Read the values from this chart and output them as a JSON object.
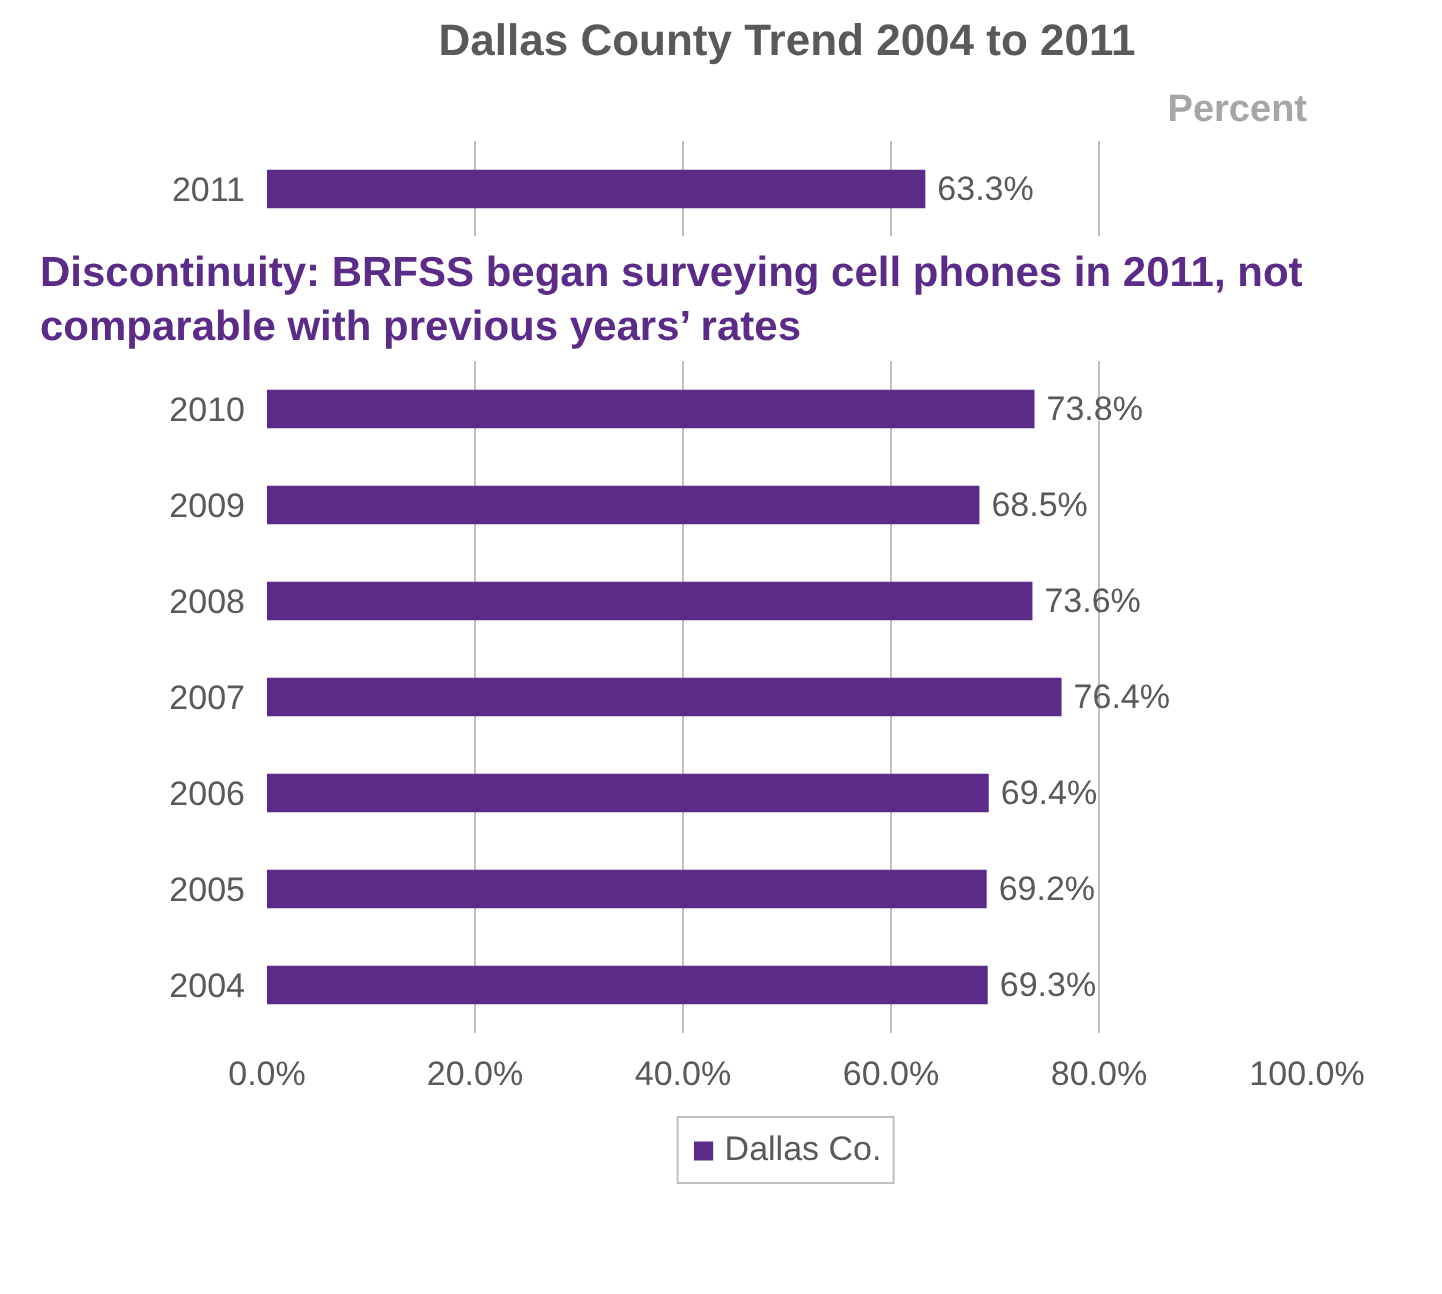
{
  "chart_data": {
    "type": "bar",
    "orientation": "horizontal",
    "title": "Dallas County Trend 2004 to 2011",
    "xlabel": "Percent",
    "categories": [
      "2011",
      null,
      "2010",
      "2009",
      "2008",
      "2007",
      "2006",
      "2005",
      "2004"
    ],
    "series": [
      {
        "name": "Dallas Co.",
        "color": "#5b2c87",
        "values": [
          63.3,
          null,
          73.8,
          68.5,
          73.6,
          76.4,
          69.4,
          69.2,
          69.3
        ],
        "value_labels": [
          "63.3%",
          null,
          "73.8%",
          "68.5%",
          "73.6%",
          "76.4%",
          "69.4%",
          "69.2%",
          "69.3%"
        ]
      }
    ],
    "xlim": [
      0,
      100
    ],
    "xticks": [
      {
        "value": 0,
        "label": "0.0%"
      },
      {
        "value": 20,
        "label": "20.0%"
      },
      {
        "value": 40,
        "label": "40.0%"
      },
      {
        "value": 60,
        "label": "60.0%"
      },
      {
        "value": 80,
        "label": "80.0%"
      },
      {
        "value": 100,
        "label": "100.0%"
      }
    ],
    "annotations": [
      "Discontinuity:  BRFSS began surveying cell phones in 2011, not comparable with previous years’ rates"
    ],
    "grid": "x",
    "legend": "bottom"
  }
}
